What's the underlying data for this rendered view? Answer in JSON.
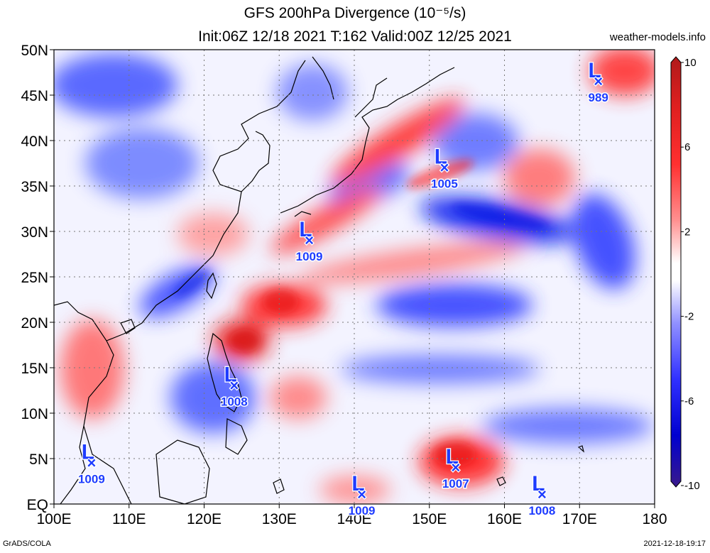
{
  "title": {
    "line1": "GFS 200hPa Divergence (10⁻⁵/s)",
    "line2": "Init:06Z 12/18 2021 T:162 Valid:00Z 12/25 2021"
  },
  "site": "weather-models.info",
  "footer": {
    "left": "GrADS/COLA",
    "right": "2021-12-18-19:17"
  },
  "axes": {
    "lat": [
      {
        "label": "50N",
        "deg": 50
      },
      {
        "label": "45N",
        "deg": 45
      },
      {
        "label": "40N",
        "deg": 40
      },
      {
        "label": "35N",
        "deg": 35
      },
      {
        "label": "30N",
        "deg": 30
      },
      {
        "label": "25N",
        "deg": 25
      },
      {
        "label": "20N",
        "deg": 20
      },
      {
        "label": "15N",
        "deg": 15
      },
      {
        "label": "10N",
        "deg": 10
      },
      {
        "label": "5N",
        "deg": 5
      },
      {
        "label": "EQ",
        "deg": 0
      }
    ],
    "lon": [
      {
        "label": "100E",
        "deg": 100
      },
      {
        "label": "110E",
        "deg": 110
      },
      {
        "label": "120E",
        "deg": 120
      },
      {
        "label": "130E",
        "deg": 130
      },
      {
        "label": "140E",
        "deg": 140
      },
      {
        "label": "150E",
        "deg": 150
      },
      {
        "label": "160E",
        "deg": 160
      },
      {
        "label": "170E",
        "deg": 170
      },
      {
        "label": "180",
        "deg": 180
      }
    ],
    "lat_range": [
      0,
      50
    ],
    "lon_range": [
      100,
      180
    ]
  },
  "colorbar": {
    "labels": [
      "10",
      "6",
      "2",
      "-2",
      "-6",
      "-10"
    ],
    "values": [
      10,
      6,
      2,
      -2,
      -6,
      -10
    ],
    "colors": [
      "#b01a1a",
      "#e02020",
      "#ff4040",
      "#ff9a9a",
      "#ffffff",
      "#9a9aff",
      "#4040ff",
      "#0000e0",
      "#3a1a9a"
    ]
  },
  "lows": [
    {
      "lat": 46.5,
      "lon": 172.5,
      "pressure": "989"
    },
    {
      "lat": 37.0,
      "lon": 152.0,
      "pressure": "1005"
    },
    {
      "lat": 29.0,
      "lon": 134.0,
      "pressure": "1009"
    },
    {
      "lat": 13.0,
      "lon": 124.0,
      "pressure": "1008"
    },
    {
      "lat": 4.5,
      "lon": 105.0,
      "pressure": "1009"
    },
    {
      "lat": 4.0,
      "lon": 153.5,
      "pressure": "1007"
    },
    {
      "lat": 1.0,
      "lon": 141.0,
      "pressure": "1009"
    },
    {
      "lat": 1.0,
      "lon": 165.0,
      "pressure": "1008"
    }
  ],
  "low_symbol": "L",
  "low_marker": "×",
  "colors": {
    "low": "#1e3cff",
    "div_pos": "#ff2020",
    "div_neg": "#2030ff"
  }
}
